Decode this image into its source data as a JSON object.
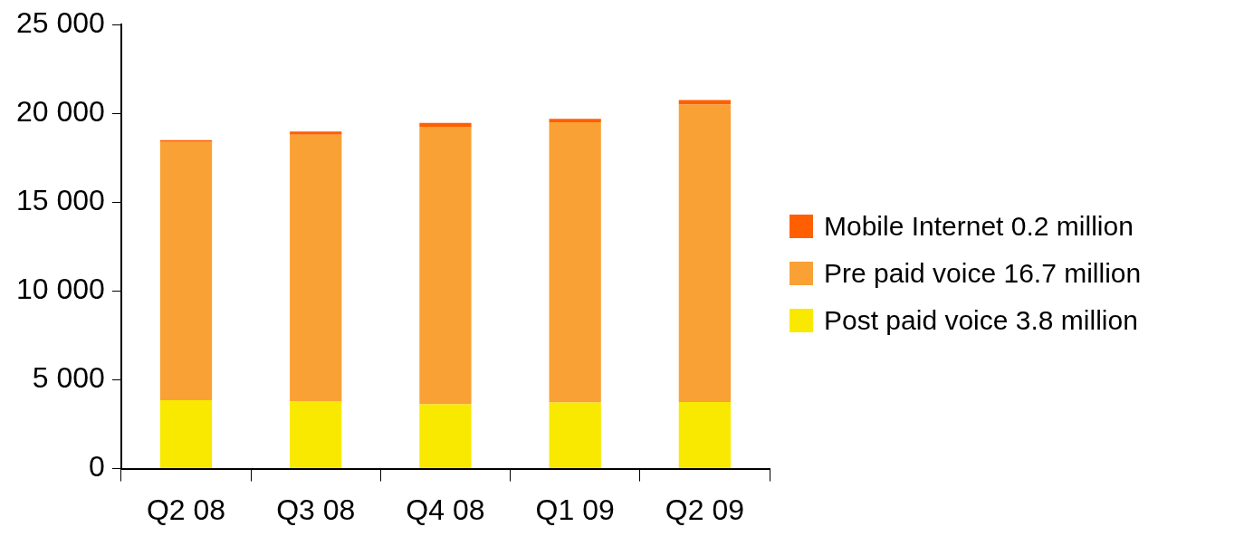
{
  "chart_data": {
    "type": "bar",
    "stacked": true,
    "categories": [
      "Q2 08",
      "Q3 08",
      "Q4 08",
      "Q1 09",
      "Q2 09"
    ],
    "series": [
      {
        "name": "Post paid voice 3.8 million",
        "color": "#f9e900",
        "values": [
          3850,
          3780,
          3630,
          3730,
          3750
        ]
      },
      {
        "name": "Pre paid voice 16.7 million",
        "color": "#f9a135",
        "values": [
          14550,
          15020,
          15620,
          15770,
          16750
        ]
      },
      {
        "name": "Mobile Internet 0.2 million",
        "color": "#ff5f00",
        "values": [
          100,
          180,
          210,
          200,
          250
        ]
      }
    ],
    "ylim": [
      0,
      25000
    ],
    "yticks": [
      {
        "value": 0,
        "label": "0"
      },
      {
        "value": 5000,
        "label": "5 000"
      },
      {
        "value": 10000,
        "label": "10 000"
      },
      {
        "value": 15000,
        "label": "15 000"
      },
      {
        "value": 20000,
        "label": "20 000"
      },
      {
        "value": 25000,
        "label": "25 000"
      }
    ],
    "grid": false,
    "legend": "right"
  }
}
